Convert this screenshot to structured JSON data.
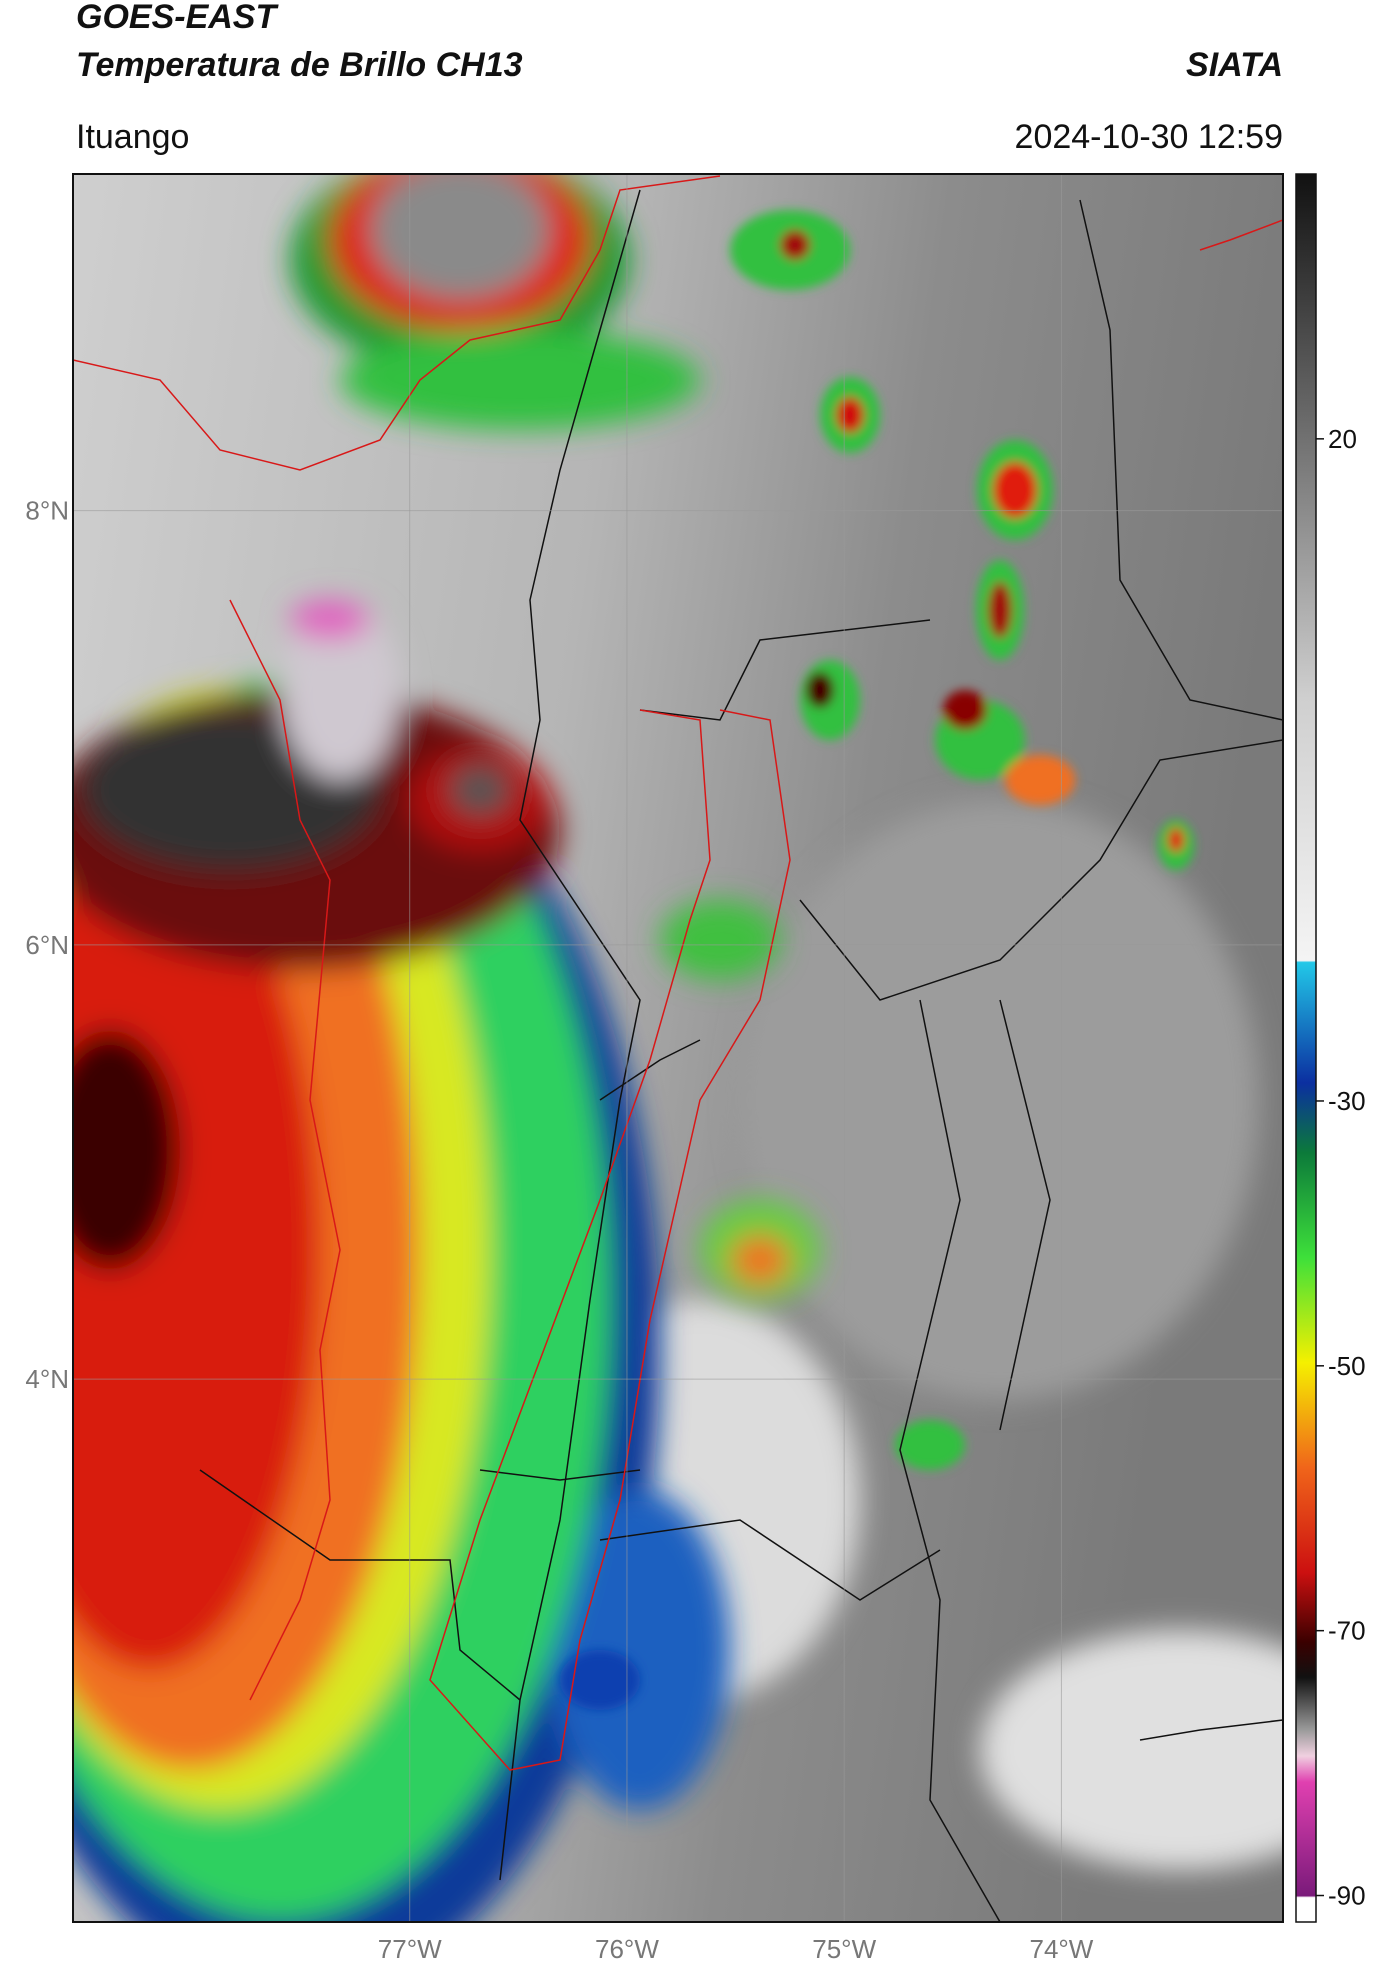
{
  "header": {
    "title": "GOES-EAST",
    "subtitle": "Temperatura de Brillo CH13",
    "source": "SIATA",
    "location": "Ituango",
    "datetime": "2024-10-30 12:59"
  },
  "map": {
    "latlim": [
      1.5,
      9.55
    ],
    "lonlim": [
      -78.55,
      -72.98
    ],
    "latticks": [
      {
        "value": 8,
        "label": "8°N"
      },
      {
        "value": 6,
        "label": "6°N"
      },
      {
        "value": 4,
        "label": "4°N"
      }
    ],
    "lonticks": [
      {
        "value": -77,
        "label": "77°W"
      },
      {
        "value": -76,
        "label": "76°W"
      },
      {
        "value": -75,
        "label": "75°W"
      },
      {
        "value": -74,
        "label": "74°W"
      }
    ]
  },
  "colorbar": {
    "lim": [
      -92,
      40
    ],
    "ticks": [
      20,
      -30,
      -50,
      -70,
      -90
    ]
  }
}
